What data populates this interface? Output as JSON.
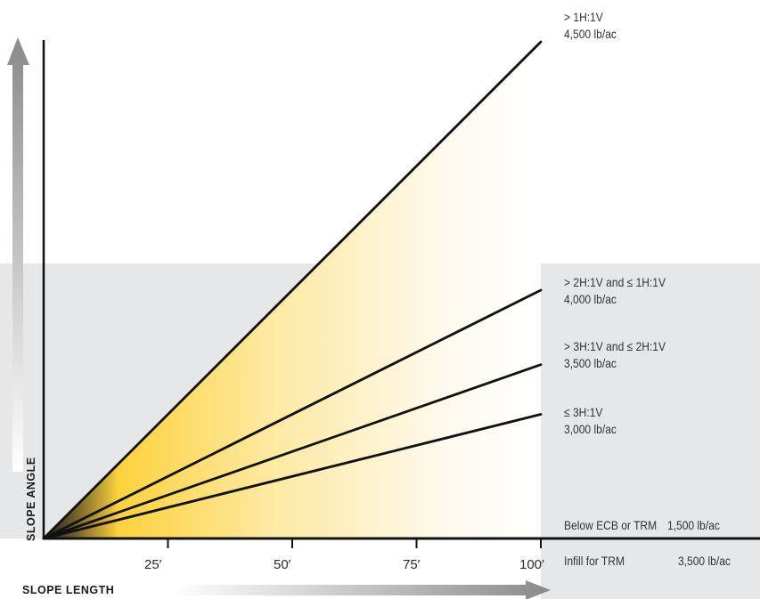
{
  "chart_data": {
    "type": "line",
    "xlabel": "SLOPE LENGTH",
    "ylabel": "SLOPE ANGLE",
    "x_ticks": [
      "25′",
      "50′",
      "75′",
      "100′"
    ],
    "x_tick_values": [
      25,
      50,
      75,
      100
    ],
    "xlim": [
      0,
      100
    ],
    "series": [
      {
        "name": "> 1H:1V",
        "rate": "4,500 lb/ac",
        "x": [
          0,
          100
        ],
        "y_rel": [
          0,
          1.0
        ]
      },
      {
        "name": "> 2H:1V and ≤ 1H:1V",
        "rate": "4,000 lb/ac",
        "x": [
          0,
          100
        ],
        "y_rel": [
          0,
          0.5
        ]
      },
      {
        "name": "> 3H:1V and ≤ 2H:1V",
        "rate": "3,500 lb/ac",
        "x": [
          0,
          100
        ],
        "y_rel": [
          0,
          0.35
        ]
      },
      {
        "name": "≤ 3H:1V",
        "rate": "3,000 lb/ac",
        "x": [
          0,
          100
        ],
        "y_rel": [
          0,
          0.25
        ]
      }
    ],
    "legend_rows": [
      {
        "label": "Below ECB or TRM",
        "value": "1,500 lb/ac"
      },
      {
        "label": "Infill for TRM",
        "value": "3,500 lb/ac"
      }
    ],
    "colors": {
      "fill_gold": "#fdd23c",
      "fill_dark": "#1e1e1e",
      "panel": "#e6e7e8",
      "arrow_gray": "#8a8a8a",
      "line": "#111111"
    }
  }
}
